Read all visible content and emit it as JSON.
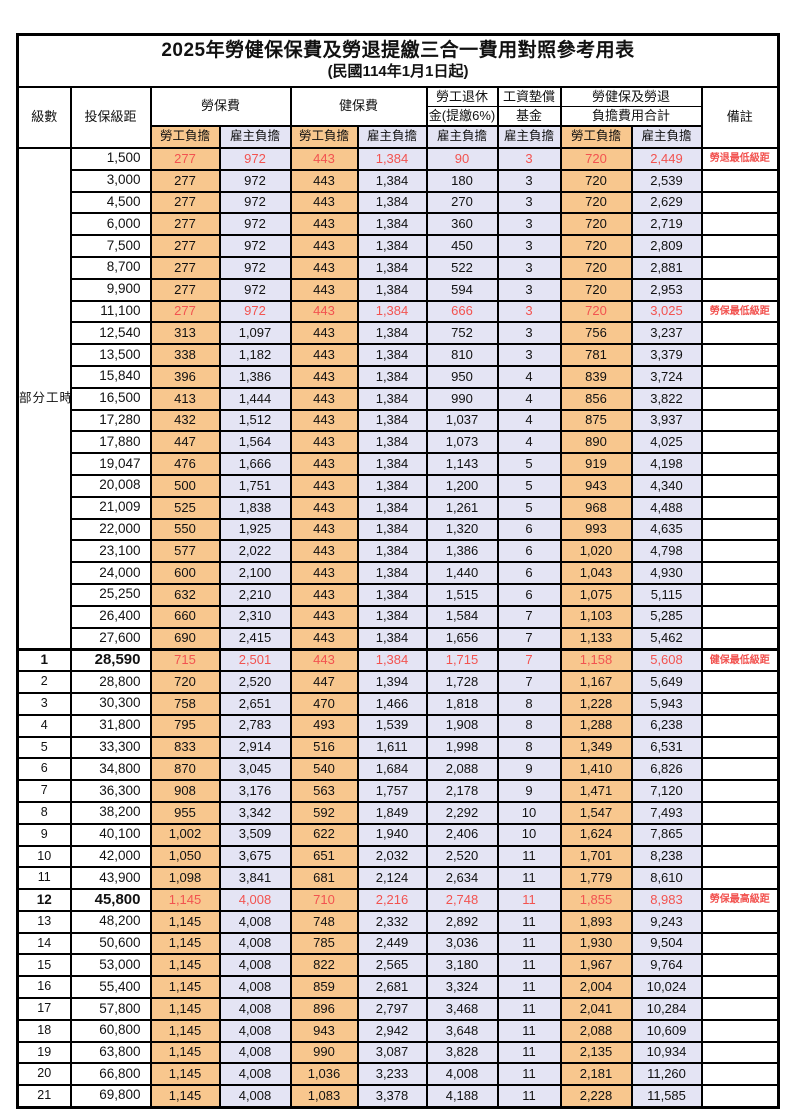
{
  "title": "2025年勞健保保費及勞退提繳三合一費用對照參考用表",
  "subtitle": "(民國114年1月1日起)",
  "colors": {
    "employee_column_bg": "#F8C78E",
    "employer_column_bg": "#E4E4F4",
    "highlight_red": "#F25350",
    "border": "#000000"
  },
  "header": {
    "level": "級數",
    "bracket": "投保級距",
    "labor_insurance": "勞保費",
    "health_insurance": "健保費",
    "pension_line1": "勞工退休",
    "pension_line2": "金(提繳6%)",
    "wage_fund_line1": "工資墊償",
    "wage_fund_line2": "基金",
    "total_line1": "勞健保及勞退",
    "total_line2": "負擔費用合計",
    "employee_share": "勞工負擔",
    "employer_share": "雇主負擔",
    "remark": "備註"
  },
  "section_label": "部分工時",
  "section_rowspan": 23,
  "rows": [
    {
      "level": "",
      "bracket": "1,500",
      "values": [
        "277",
        "972",
        "443",
        "1,384",
        "90",
        "3",
        "720",
        "2,449"
      ],
      "note": "勞退最低級距",
      "highlight": true,
      "emphasis": false
    },
    {
      "level": "",
      "bracket": "3,000",
      "values": [
        "277",
        "972",
        "443",
        "1,384",
        "180",
        "3",
        "720",
        "2,539"
      ],
      "note": "",
      "highlight": false,
      "emphasis": false
    },
    {
      "level": "",
      "bracket": "4,500",
      "values": [
        "277",
        "972",
        "443",
        "1,384",
        "270",
        "3",
        "720",
        "2,629"
      ],
      "note": "",
      "highlight": false,
      "emphasis": false
    },
    {
      "level": "",
      "bracket": "6,000",
      "values": [
        "277",
        "972",
        "443",
        "1,384",
        "360",
        "3",
        "720",
        "2,719"
      ],
      "note": "",
      "highlight": false,
      "emphasis": false
    },
    {
      "level": "",
      "bracket": "7,500",
      "values": [
        "277",
        "972",
        "443",
        "1,384",
        "450",
        "3",
        "720",
        "2,809"
      ],
      "note": "",
      "highlight": false,
      "emphasis": false
    },
    {
      "level": "",
      "bracket": "8,700",
      "values": [
        "277",
        "972",
        "443",
        "1,384",
        "522",
        "3",
        "720",
        "2,881"
      ],
      "note": "",
      "highlight": false,
      "emphasis": false
    },
    {
      "level": "",
      "bracket": "9,900",
      "values": [
        "277",
        "972",
        "443",
        "1,384",
        "594",
        "3",
        "720",
        "2,953"
      ],
      "note": "",
      "highlight": false,
      "emphasis": false
    },
    {
      "level": "",
      "bracket": "11,100",
      "values": [
        "277",
        "972",
        "443",
        "1,384",
        "666",
        "3",
        "720",
        "3,025"
      ],
      "note": "勞保最低級距",
      "highlight": true,
      "emphasis": false
    },
    {
      "level": "",
      "bracket": "12,540",
      "values": [
        "313",
        "1,097",
        "443",
        "1,384",
        "752",
        "3",
        "756",
        "3,237"
      ],
      "note": "",
      "highlight": false,
      "emphasis": false
    },
    {
      "level": "",
      "bracket": "13,500",
      "values": [
        "338",
        "1,182",
        "443",
        "1,384",
        "810",
        "3",
        "781",
        "3,379"
      ],
      "note": "",
      "highlight": false,
      "emphasis": false
    },
    {
      "level": "",
      "bracket": "15,840",
      "values": [
        "396",
        "1,386",
        "443",
        "1,384",
        "950",
        "4",
        "839",
        "3,724"
      ],
      "note": "",
      "highlight": false,
      "emphasis": false
    },
    {
      "level": "",
      "bracket": "16,500",
      "values": [
        "413",
        "1,444",
        "443",
        "1,384",
        "990",
        "4",
        "856",
        "3,822"
      ],
      "note": "",
      "highlight": false,
      "emphasis": false
    },
    {
      "level": "",
      "bracket": "17,280",
      "values": [
        "432",
        "1,512",
        "443",
        "1,384",
        "1,037",
        "4",
        "875",
        "3,937"
      ],
      "note": "",
      "highlight": false,
      "emphasis": false
    },
    {
      "level": "",
      "bracket": "17,880",
      "values": [
        "447",
        "1,564",
        "443",
        "1,384",
        "1,073",
        "4",
        "890",
        "4,025"
      ],
      "note": "",
      "highlight": false,
      "emphasis": false
    },
    {
      "level": "",
      "bracket": "19,047",
      "values": [
        "476",
        "1,666",
        "443",
        "1,384",
        "1,143",
        "5",
        "919",
        "4,198"
      ],
      "note": "",
      "highlight": false,
      "emphasis": false
    },
    {
      "level": "",
      "bracket": "20,008",
      "values": [
        "500",
        "1,751",
        "443",
        "1,384",
        "1,200",
        "5",
        "943",
        "4,340"
      ],
      "note": "",
      "highlight": false,
      "emphasis": false
    },
    {
      "level": "",
      "bracket": "21,009",
      "values": [
        "525",
        "1,838",
        "443",
        "1,384",
        "1,261",
        "5",
        "968",
        "4,488"
      ],
      "note": "",
      "highlight": false,
      "emphasis": false
    },
    {
      "level": "",
      "bracket": "22,000",
      "values": [
        "550",
        "1,925",
        "443",
        "1,384",
        "1,320",
        "6",
        "993",
        "4,635"
      ],
      "note": "",
      "highlight": false,
      "emphasis": false
    },
    {
      "level": "",
      "bracket": "23,100",
      "values": [
        "577",
        "2,022",
        "443",
        "1,384",
        "1,386",
        "6",
        "1,020",
        "4,798"
      ],
      "note": "",
      "highlight": false,
      "emphasis": false
    },
    {
      "level": "",
      "bracket": "24,000",
      "values": [
        "600",
        "2,100",
        "443",
        "1,384",
        "1,440",
        "6",
        "1,043",
        "4,930"
      ],
      "note": "",
      "highlight": false,
      "emphasis": false
    },
    {
      "level": "",
      "bracket": "25,250",
      "values": [
        "632",
        "2,210",
        "443",
        "1,384",
        "1,515",
        "6",
        "1,075",
        "5,115"
      ],
      "note": "",
      "highlight": false,
      "emphasis": false
    },
    {
      "level": "",
      "bracket": "26,400",
      "values": [
        "660",
        "2,310",
        "443",
        "1,384",
        "1,584",
        "7",
        "1,103",
        "5,285"
      ],
      "note": "",
      "highlight": false,
      "emphasis": false
    },
    {
      "level": "",
      "bracket": "27,600",
      "values": [
        "690",
        "2,415",
        "443",
        "1,384",
        "1,656",
        "7",
        "1,133",
        "5,462"
      ],
      "note": "",
      "highlight": false,
      "emphasis": false
    },
    {
      "level": "1",
      "bracket": "28,590",
      "values": [
        "715",
        "2,501",
        "443",
        "1,384",
        "1,715",
        "7",
        "1,158",
        "5,608"
      ],
      "note": "健保最低級距",
      "highlight": true,
      "emphasis": true
    },
    {
      "level": "2",
      "bracket": "28,800",
      "values": [
        "720",
        "2,520",
        "447",
        "1,394",
        "1,728",
        "7",
        "1,167",
        "5,649"
      ],
      "note": "",
      "highlight": false,
      "emphasis": false
    },
    {
      "level": "3",
      "bracket": "30,300",
      "values": [
        "758",
        "2,651",
        "470",
        "1,466",
        "1,818",
        "8",
        "1,228",
        "5,943"
      ],
      "note": "",
      "highlight": false,
      "emphasis": false
    },
    {
      "level": "4",
      "bracket": "31,800",
      "values": [
        "795",
        "2,783",
        "493",
        "1,539",
        "1,908",
        "8",
        "1,288",
        "6,238"
      ],
      "note": "",
      "highlight": false,
      "emphasis": false
    },
    {
      "level": "5",
      "bracket": "33,300",
      "values": [
        "833",
        "2,914",
        "516",
        "1,611",
        "1,998",
        "8",
        "1,349",
        "6,531"
      ],
      "note": "",
      "highlight": false,
      "emphasis": false
    },
    {
      "level": "6",
      "bracket": "34,800",
      "values": [
        "870",
        "3,045",
        "540",
        "1,684",
        "2,088",
        "9",
        "1,410",
        "6,826"
      ],
      "note": "",
      "highlight": false,
      "emphasis": false
    },
    {
      "level": "7",
      "bracket": "36,300",
      "values": [
        "908",
        "3,176",
        "563",
        "1,757",
        "2,178",
        "9",
        "1,471",
        "7,120"
      ],
      "note": "",
      "highlight": false,
      "emphasis": false
    },
    {
      "level": "8",
      "bracket": "38,200",
      "values": [
        "955",
        "3,342",
        "592",
        "1,849",
        "2,292",
        "10",
        "1,547",
        "7,493"
      ],
      "note": "",
      "highlight": false,
      "emphasis": false
    },
    {
      "level": "9",
      "bracket": "40,100",
      "values": [
        "1,002",
        "3,509",
        "622",
        "1,940",
        "2,406",
        "10",
        "1,624",
        "7,865"
      ],
      "note": "",
      "highlight": false,
      "emphasis": false
    },
    {
      "level": "10",
      "bracket": "42,000",
      "values": [
        "1,050",
        "3,675",
        "651",
        "2,032",
        "2,520",
        "11",
        "1,701",
        "8,238"
      ],
      "note": "",
      "highlight": false,
      "emphasis": false
    },
    {
      "level": "11",
      "bracket": "43,900",
      "values": [
        "1,098",
        "3,841",
        "681",
        "2,124",
        "2,634",
        "11",
        "1,779",
        "8,610"
      ],
      "note": "",
      "highlight": false,
      "emphasis": false
    },
    {
      "level": "12",
      "bracket": "45,800",
      "values": [
        "1,145",
        "4,008",
        "710",
        "2,216",
        "2,748",
        "11",
        "1,855",
        "8,983"
      ],
      "note": "勞保最高級距",
      "highlight": true,
      "emphasis": true
    },
    {
      "level": "13",
      "bracket": "48,200",
      "values": [
        "1,145",
        "4,008",
        "748",
        "2,332",
        "2,892",
        "11",
        "1,893",
        "9,243"
      ],
      "note": "",
      "highlight": false,
      "emphasis": false
    },
    {
      "level": "14",
      "bracket": "50,600",
      "values": [
        "1,145",
        "4,008",
        "785",
        "2,449",
        "3,036",
        "11",
        "1,930",
        "9,504"
      ],
      "note": "",
      "highlight": false,
      "emphasis": false
    },
    {
      "level": "15",
      "bracket": "53,000",
      "values": [
        "1,145",
        "4,008",
        "822",
        "2,565",
        "3,180",
        "11",
        "1,967",
        "9,764"
      ],
      "note": "",
      "highlight": false,
      "emphasis": false
    },
    {
      "level": "16",
      "bracket": "55,400",
      "values": [
        "1,145",
        "4,008",
        "859",
        "2,681",
        "3,324",
        "11",
        "2,004",
        "10,024"
      ],
      "note": "",
      "highlight": false,
      "emphasis": false
    },
    {
      "level": "17",
      "bracket": "57,800",
      "values": [
        "1,145",
        "4,008",
        "896",
        "2,797",
        "3,468",
        "11",
        "2,041",
        "10,284"
      ],
      "note": "",
      "highlight": false,
      "emphasis": false
    },
    {
      "level": "18",
      "bracket": "60,800",
      "values": [
        "1,145",
        "4,008",
        "943",
        "2,942",
        "3,648",
        "11",
        "2,088",
        "10,609"
      ],
      "note": "",
      "highlight": false,
      "emphasis": false
    },
    {
      "level": "19",
      "bracket": "63,800",
      "values": [
        "1,145",
        "4,008",
        "990",
        "3,087",
        "3,828",
        "11",
        "2,135",
        "10,934"
      ],
      "note": "",
      "highlight": false,
      "emphasis": false
    },
    {
      "level": "20",
      "bracket": "66,800",
      "values": [
        "1,145",
        "4,008",
        "1,036",
        "3,233",
        "4,008",
        "11",
        "2,181",
        "11,260"
      ],
      "note": "",
      "highlight": false,
      "emphasis": false
    },
    {
      "level": "21",
      "bracket": "69,800",
      "values": [
        "1,145",
        "4,008",
        "1,083",
        "3,378",
        "4,188",
        "11",
        "2,228",
        "11,585"
      ],
      "note": "",
      "highlight": false,
      "emphasis": false
    }
  ]
}
